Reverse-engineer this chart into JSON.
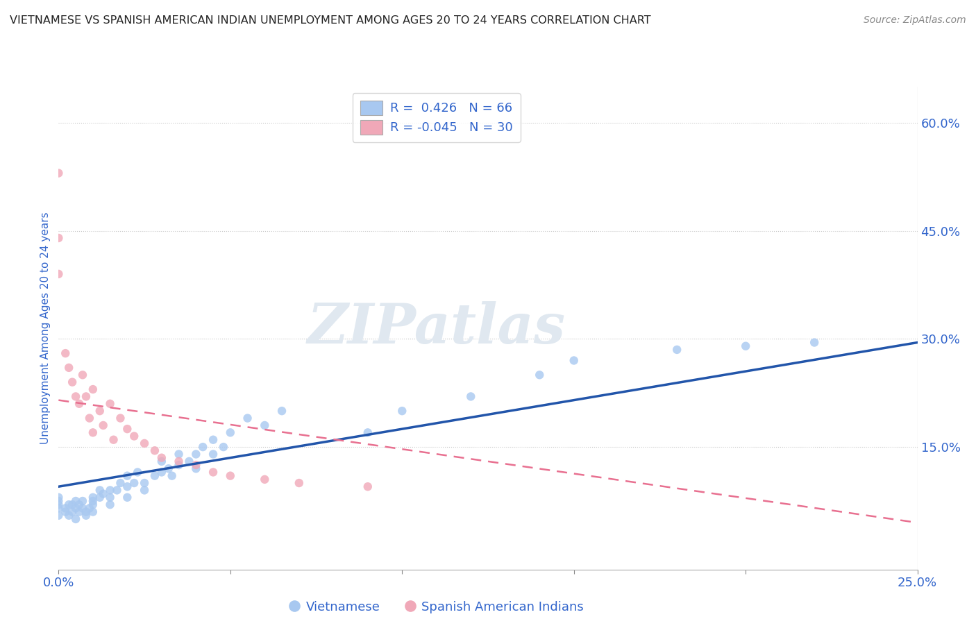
{
  "title": "VIETNAMESE VS SPANISH AMERICAN INDIAN UNEMPLOYMENT AMONG AGES 20 TO 24 YEARS CORRELATION CHART",
  "source": "Source: ZipAtlas.com",
  "ylabel": "Unemployment Among Ages 20 to 24 years",
  "xlim": [
    0.0,
    0.25
  ],
  "ylim": [
    -0.02,
    0.65
  ],
  "y_ticks": [
    0.0,
    0.15,
    0.3,
    0.45,
    0.6
  ],
  "y_tick_labels": [
    "",
    "15.0%",
    "30.0%",
    "45.0%",
    "60.0%"
  ],
  "x_ticks": [
    0.0,
    0.05,
    0.1,
    0.15,
    0.2,
    0.25
  ],
  "x_tick_labels": [
    "0.0%",
    "",
    "",
    "",
    "",
    "25.0%"
  ],
  "background_color": "#ffffff",
  "grid_color": "#c8c8c8",
  "legend_R1": "0.426",
  "legend_N1": "66",
  "legend_R2": "-0.045",
  "legend_N2": "30",
  "vietnamese_color": "#a8c8f0",
  "spanish_color": "#f0a8b8",
  "vietnamese_line_color": "#2255aa",
  "spanish_line_color": "#e87090",
  "axis_label_color": "#3366cc",
  "title_color": "#222222",
  "watermark_color": "#e0e8f0",
  "vietnamese_x": [
    0.0,
    0.0,
    0.0,
    0.0,
    0.0,
    0.002,
    0.002,
    0.003,
    0.003,
    0.004,
    0.004,
    0.005,
    0.005,
    0.005,
    0.006,
    0.006,
    0.007,
    0.007,
    0.008,
    0.008,
    0.009,
    0.01,
    0.01,
    0.01,
    0.01,
    0.012,
    0.012,
    0.013,
    0.015,
    0.015,
    0.015,
    0.017,
    0.018,
    0.02,
    0.02,
    0.02,
    0.022,
    0.023,
    0.025,
    0.025,
    0.028,
    0.03,
    0.03,
    0.032,
    0.033,
    0.035,
    0.035,
    0.038,
    0.04,
    0.04,
    0.042,
    0.045,
    0.045,
    0.048,
    0.05,
    0.055,
    0.06,
    0.065,
    0.09,
    0.1,
    0.12,
    0.14,
    0.15,
    0.18,
    0.2,
    0.22
  ],
  "vietnamese_y": [
    0.055,
    0.065,
    0.07,
    0.075,
    0.08,
    0.06,
    0.065,
    0.07,
    0.055,
    0.06,
    0.07,
    0.05,
    0.065,
    0.075,
    0.06,
    0.07,
    0.065,
    0.075,
    0.055,
    0.06,
    0.065,
    0.06,
    0.07,
    0.08,
    0.075,
    0.08,
    0.09,
    0.085,
    0.07,
    0.08,
    0.09,
    0.09,
    0.1,
    0.08,
    0.095,
    0.11,
    0.1,
    0.115,
    0.09,
    0.1,
    0.11,
    0.115,
    0.13,
    0.12,
    0.11,
    0.125,
    0.14,
    0.13,
    0.12,
    0.14,
    0.15,
    0.14,
    0.16,
    0.15,
    0.17,
    0.19,
    0.18,
    0.2,
    0.17,
    0.2,
    0.22,
    0.25,
    0.27,
    0.285,
    0.29,
    0.295
  ],
  "spanish_x": [
    0.0,
    0.0,
    0.0,
    0.002,
    0.003,
    0.004,
    0.005,
    0.006,
    0.007,
    0.008,
    0.009,
    0.01,
    0.01,
    0.012,
    0.013,
    0.015,
    0.016,
    0.018,
    0.02,
    0.022,
    0.025,
    0.028,
    0.03,
    0.035,
    0.04,
    0.045,
    0.05,
    0.06,
    0.07,
    0.09
  ],
  "spanish_y": [
    0.53,
    0.44,
    0.39,
    0.28,
    0.26,
    0.24,
    0.22,
    0.21,
    0.25,
    0.22,
    0.19,
    0.17,
    0.23,
    0.2,
    0.18,
    0.21,
    0.16,
    0.19,
    0.175,
    0.165,
    0.155,
    0.145,
    0.135,
    0.13,
    0.125,
    0.115,
    0.11,
    0.105,
    0.1,
    0.095
  ],
  "viet_line_x0": 0.0,
  "viet_line_x1": 0.25,
  "viet_line_y0": 0.095,
  "viet_line_y1": 0.295,
  "span_line_x0": 0.0,
  "span_line_x1": 0.25,
  "span_line_y0": 0.215,
  "span_line_y1": 0.045
}
